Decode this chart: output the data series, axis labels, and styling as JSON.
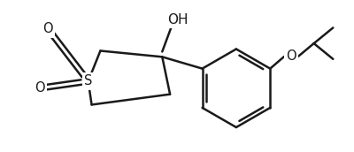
{
  "bg_color": "#ffffff",
  "line_color": "#1a1a1a",
  "line_width": 1.8,
  "font_size_label": 10.5,
  "S_label": "S",
  "OH_label": "OH",
  "O_label": "O"
}
